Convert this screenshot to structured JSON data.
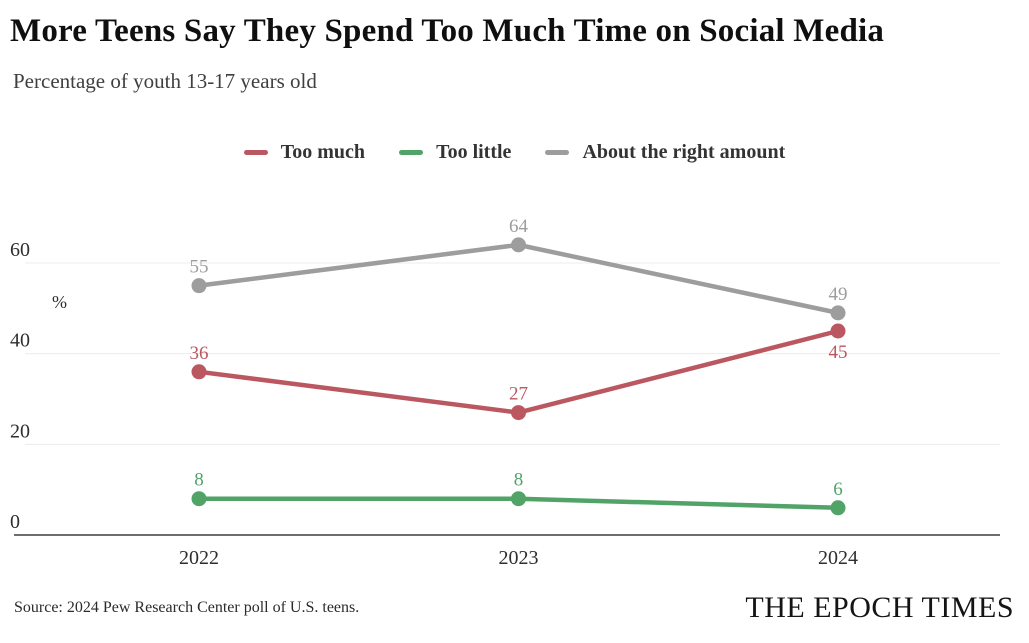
{
  "header": {
    "title": "More Teens Say They Spend Too Much Time on Social Media",
    "subtitle": "Percentage of youth 13-17 years old"
  },
  "legend": [
    {
      "label": "Too much",
      "color": "#bb5761"
    },
    {
      "label": "Too little",
      "color": "#52a368"
    },
    {
      "label": "About the right amount",
      "color": "#9d9d9d"
    }
  ],
  "chart_data": {
    "type": "line",
    "categories": [
      "2022",
      "2023",
      "2024"
    ],
    "series": [
      {
        "name": "About the right amount",
        "color": "#9d9d9d",
        "values": [
          55,
          64,
          49
        ],
        "label_positions": [
          "above",
          "above",
          "above"
        ]
      },
      {
        "name": "Too much",
        "color": "#bb5761",
        "values": [
          36,
          27,
          45
        ],
        "label_positions": [
          "above",
          "above",
          "below"
        ]
      },
      {
        "name": "Too little",
        "color": "#52a368",
        "values": [
          8,
          8,
          6
        ],
        "label_positions": [
          "above",
          "above",
          "above"
        ]
      }
    ],
    "ylabel": "%",
    "yticks": [
      0,
      20,
      40,
      60
    ],
    "ylim": [
      0,
      72
    ],
    "grid": true,
    "legend_position": "top",
    "colors": {
      "gridline": "#ececec",
      "axis_line": "#3e3e3e",
      "tick_label": "#2e2e2e"
    }
  },
  "footer": {
    "source": "Source: 2024 Pew Research Center poll of U.S. teens.",
    "brand": "THE EPOCH TIMES"
  }
}
